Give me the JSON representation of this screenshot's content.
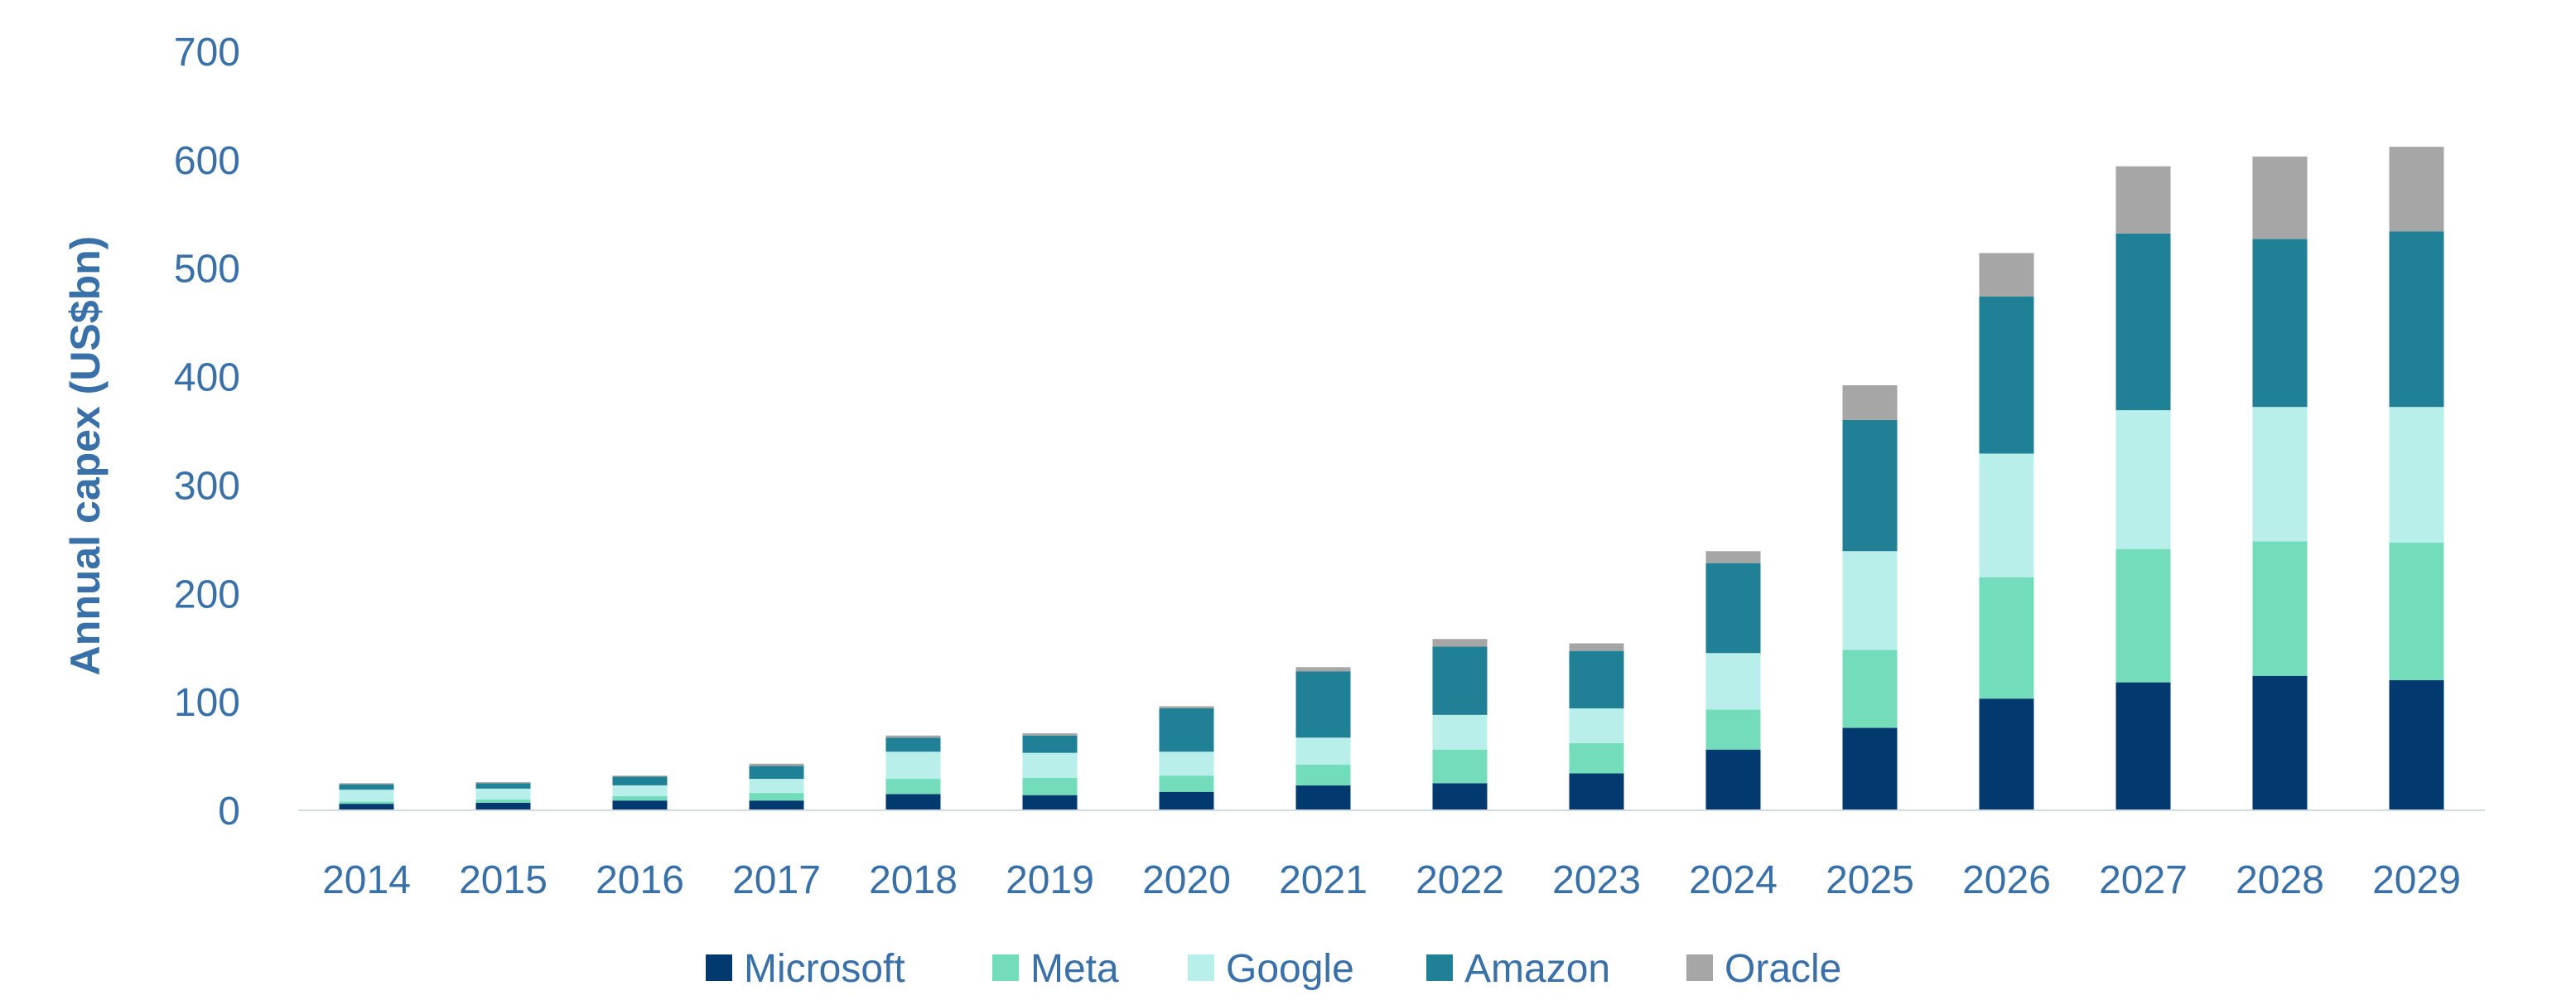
{
  "chart_data": {
    "type": "bar",
    "stacked": true,
    "title": "",
    "xlabel": "",
    "ylabel": "Annual capex (US$bn)",
    "ylim": [
      0,
      700
    ],
    "yticks": [
      0,
      100,
      200,
      300,
      400,
      500,
      600,
      700
    ],
    "categories": [
      "2014",
      "2015",
      "2016",
      "2017",
      "2018",
      "2019",
      "2020",
      "2021",
      "2022",
      "2023",
      "2024",
      "2025",
      "2026",
      "2027",
      "2028",
      "2029"
    ],
    "series": [
      {
        "name": "Microsoft",
        "color": "#023a70",
        "values": [
          6,
          7,
          9,
          9,
          15,
          14,
          17,
          23,
          25,
          34,
          56,
          76,
          103,
          118,
          124,
          120
        ]
      },
      {
        "name": "Meta",
        "color": "#72dcbb",
        "values": [
          2,
          3,
          4,
          7,
          14,
          16,
          15,
          19,
          31,
          28,
          37,
          72,
          112,
          123,
          124,
          127
        ]
      },
      {
        "name": "Google",
        "color": "#b8efea",
        "values": [
          11,
          10,
          10,
          13,
          25,
          23,
          22,
          25,
          32,
          32,
          52,
          91,
          114,
          128,
          124,
          125
        ]
      },
      {
        "name": "Amazon",
        "color": "#1f8096",
        "values": [
          5,
          5,
          8,
          12,
          13,
          16,
          40,
          61,
          63,
          53,
          83,
          121,
          145,
          163,
          155,
          162
        ]
      },
      {
        "name": "Oracle",
        "color": "#a6a6a6",
        "values": [
          1,
          1,
          1,
          2,
          2,
          2,
          2,
          4,
          7,
          7,
          11,
          32,
          40,
          62,
          76,
          78
        ]
      }
    ],
    "legend_position": "bottom-center",
    "grid": false
  }
}
